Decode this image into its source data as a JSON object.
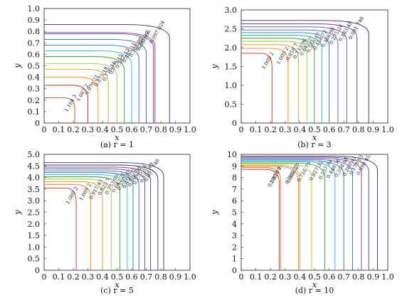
{
  "figure": {
    "panels_order": [
      "a",
      "b",
      "c",
      "d"
    ]
  },
  "chart_data": [
    {
      "id": "a",
      "type": "contour",
      "caption": "(a) r = 1",
      "xlabel": "x",
      "ylabel": "y",
      "xlim": [
        0,
        1.0
      ],
      "ylim": [
        0,
        1.0
      ],
      "xticks": [
        "0",
        "0.1",
        "0.2",
        "0.3",
        "0.4",
        "0.5",
        "0.6",
        "0.7",
        "0.8",
        "0.9",
        "1.0"
      ],
      "yticks": [
        "0",
        "0.1",
        "0.2",
        "0.3",
        "0.4",
        "0.5",
        "0.6",
        "0.7",
        "0.8",
        "0.9",
        "1.0"
      ],
      "contours": [
        {
          "label": "1.164 3",
          "color": "#a0522d",
          "x_end": 0.21,
          "y_top": 0.22
        },
        {
          "label": "1.067 2",
          "color": "#d62728",
          "x_end": 0.3,
          "y_top": 0.33
        },
        {
          "label": "0.970 21",
          "color": "#ff7f0e",
          "x_end": 0.37,
          "y_top": 0.4
        },
        {
          "label": "0.873 18",
          "color": "#d4a017",
          "x_end": 0.44,
          "y_top": 0.47
        },
        {
          "label": "0.776 16",
          "color": "#9acd32",
          "x_end": 0.5,
          "y_top": 0.52
        },
        {
          "label": "0.679 15",
          "color": "#2ca02c",
          "x_end": 0.55,
          "y_top": 0.58
        },
        {
          "label": "0.582 13",
          "color": "#17becf",
          "x_end": 0.6,
          "y_top": 0.63
        },
        {
          "label": "0.485 11",
          "color": "#1f77b4",
          "x_end": 0.65,
          "y_top": 0.68
        },
        {
          "label": "0.388 09",
          "color": "#3b5bdb",
          "x_end": 0.7,
          "y_top": 0.73
        },
        {
          "label": "0.291 07",
          "color": "#6a3d9a",
          "x_end": 0.75,
          "y_top": 0.78
        },
        {
          "label": "0.019 06",
          "color": "#6a3d9a",
          "x_end": 0.76,
          "y_top": 0.79
        },
        {
          "label": "0.097 024",
          "color": "#2b2b5c",
          "x_end": 0.86,
          "y_top": 0.86
        }
      ]
    },
    {
      "id": "b",
      "type": "contour",
      "caption": "(b) r = 3",
      "xlabel": "x",
      "ylabel": "y",
      "xlim": [
        0,
        1.0
      ],
      "ylim": [
        0,
        3.0
      ],
      "xticks": [
        "0",
        "0.1",
        "0.2",
        "0.3",
        "0.4",
        "0.5",
        "0.6",
        "0.7",
        "0.8",
        "0.9",
        "1.0"
      ],
      "yticks": [
        "0",
        "0.5",
        "1.0",
        "1.5",
        "2.0",
        "2.5",
        "3.0"
      ],
      "contours": [
        {
          "label": "1.009 2",
          "color": "#d62728",
          "x_end": 0.21,
          "y_top": 1.85
        },
        {
          "label": "1.009 2",
          "color": "#ff7f0e",
          "x_end": 0.32,
          "y_top": 1.98
        },
        {
          "label": "0.858 7",
          "color": "#d4a017",
          "x_end": 0.39,
          "y_top": 2.08
        },
        {
          "label": "0.733 96",
          "color": "#9acd32",
          "x_end": 0.45,
          "y_top": 2.17
        },
        {
          "label": "0.642 21",
          "color": "#2ca02c",
          "x_end": 0.5,
          "y_top": 2.25
        },
        {
          "label": "0.550 47",
          "color": "#17becf",
          "x_end": 0.55,
          "y_top": 2.33
        },
        {
          "label": "0.458 72",
          "color": "#1f77b4",
          "x_end": 0.6,
          "y_top": 2.4
        },
        {
          "label": "0.366 98",
          "color": "#3b5bdb",
          "x_end": 0.66,
          "y_top": 2.47
        },
        {
          "label": "0.275 24",
          "color": "#6a3d9a",
          "x_end": 0.72,
          "y_top": 2.55
        },
        {
          "label": "0.183 49",
          "color": "#5a2d82",
          "x_end": 0.79,
          "y_top": 2.63
        },
        {
          "label": "0.091 746",
          "color": "#2b2b5c",
          "x_end": 0.87,
          "y_top": 2.72
        }
      ]
    },
    {
      "id": "c",
      "type": "contour",
      "caption": "(c) r = 5",
      "xlabel": "x",
      "ylabel": "y",
      "xlim": [
        0,
        1.0
      ],
      "ylim": [
        0,
        5.0
      ],
      "xticks": [
        "0",
        "0.1",
        "0.2",
        "0.3",
        "0.4",
        "0.5",
        "0.6",
        "0.7",
        "0.8",
        "0.9",
        "1.0"
      ],
      "yticks": [
        "0",
        "0.5",
        "1.0",
        "1.5",
        "2.0",
        "2.5",
        "3.0",
        "3.5",
        "4.0",
        "4.5",
        "5.0"
      ],
      "contours": [
        {
          "label": "1.009 2",
          "color": "#d62728",
          "x_end": 0.22,
          "y_top": 3.55
        },
        {
          "label": "1.009 2",
          "color": "#ff7f0e",
          "x_end": 0.32,
          "y_top": 3.7
        },
        {
          "label": "0.917 45",
          "color": "#d4a017",
          "x_end": 0.4,
          "y_top": 3.82
        },
        {
          "label": "0.825 7",
          "color": "#9acd32",
          "x_end": 0.46,
          "y_top": 3.93
        },
        {
          "label": "0.733 96",
          "color": "#2ca02c",
          "x_end": 0.52,
          "y_top": 4.03
        },
        {
          "label": "0.642 21",
          "color": "#17becf",
          "x_end": 0.57,
          "y_top": 4.12
        },
        {
          "label": "0.550 47",
          "color": "#1f77b4",
          "x_end": 0.61,
          "y_top": 4.21
        },
        {
          "label": "0.458 72",
          "color": "#3b5bdb",
          "x_end": 0.65,
          "y_top": 4.29
        },
        {
          "label": "0.366 98",
          "color": "#6a3d9a",
          "x_end": 0.69,
          "y_top": 4.37
        },
        {
          "label": "0.275 24",
          "color": "#5a2d82",
          "x_end": 0.73,
          "y_top": 4.45
        },
        {
          "label": "0.183 49",
          "color": "#3d2d6e",
          "x_end": 0.78,
          "y_top": 4.54
        },
        {
          "label": "0.091 746",
          "color": "#2b2b5c",
          "x_end": 0.82,
          "y_top": 4.64
        }
      ]
    },
    {
      "id": "d",
      "type": "contour",
      "caption": "(d) r = 10",
      "xlabel": "x",
      "ylabel": "y",
      "xlim": [
        0,
        1.0
      ],
      "ylim": [
        0,
        10
      ],
      "xticks": [
        "0",
        "0.1",
        "0.2",
        "0.3",
        "0.4",
        "0.5",
        "0.6",
        "0.7",
        "0.8",
        "0.9",
        "1.0"
      ],
      "yticks": [
        "0",
        "1",
        "2",
        "3",
        "4",
        "5",
        "6",
        "7",
        "8",
        "9",
        "10"
      ],
      "contours": [
        {
          "label": "0.985 78",
          "color": "#d62728",
          "x_end": 0.26,
          "y_top": 8.7
        },
        {
          "label": "1.074 7",
          "color": "#ff7f0e",
          "x_end": 0.27,
          "y_top": 8.85
        },
        {
          "label": "0.985 23",
          "color": "#e07b39",
          "x_end": 0.39,
          "y_top": 8.95
        },
        {
          "label": "0.806 27",
          "color": "#d4a017",
          "x_end": 0.4,
          "y_top": 9.05
        },
        {
          "label": "0.716 79",
          "color": "#9acd32",
          "x_end": 0.48,
          "y_top": 9.15
        },
        {
          "label": "0.627 32",
          "color": "#2ca02c",
          "x_end": 0.57,
          "y_top": 9.25
        },
        {
          "label": "0.537 84",
          "color": "#17becf",
          "x_end": 0.64,
          "y_top": 9.35
        },
        {
          "label": "0.448 36",
          "color": "#1f77b4",
          "x_end": 0.7,
          "y_top": 9.45
        },
        {
          "label": "0.358 88",
          "color": "#3b5bdb",
          "x_end": 0.76,
          "y_top": 9.55
        },
        {
          "label": "0.269 41",
          "color": "#6a3d9a",
          "x_end": 0.82,
          "y_top": 9.65
        },
        {
          "label": "0.179 93",
          "color": "#5a2d82",
          "x_end": 0.87,
          "y_top": 9.75
        },
        {
          "label": "0.090 451",
          "color": "#2b2b5c",
          "x_end": 0.93,
          "y_top": 9.85
        }
      ]
    }
  ]
}
